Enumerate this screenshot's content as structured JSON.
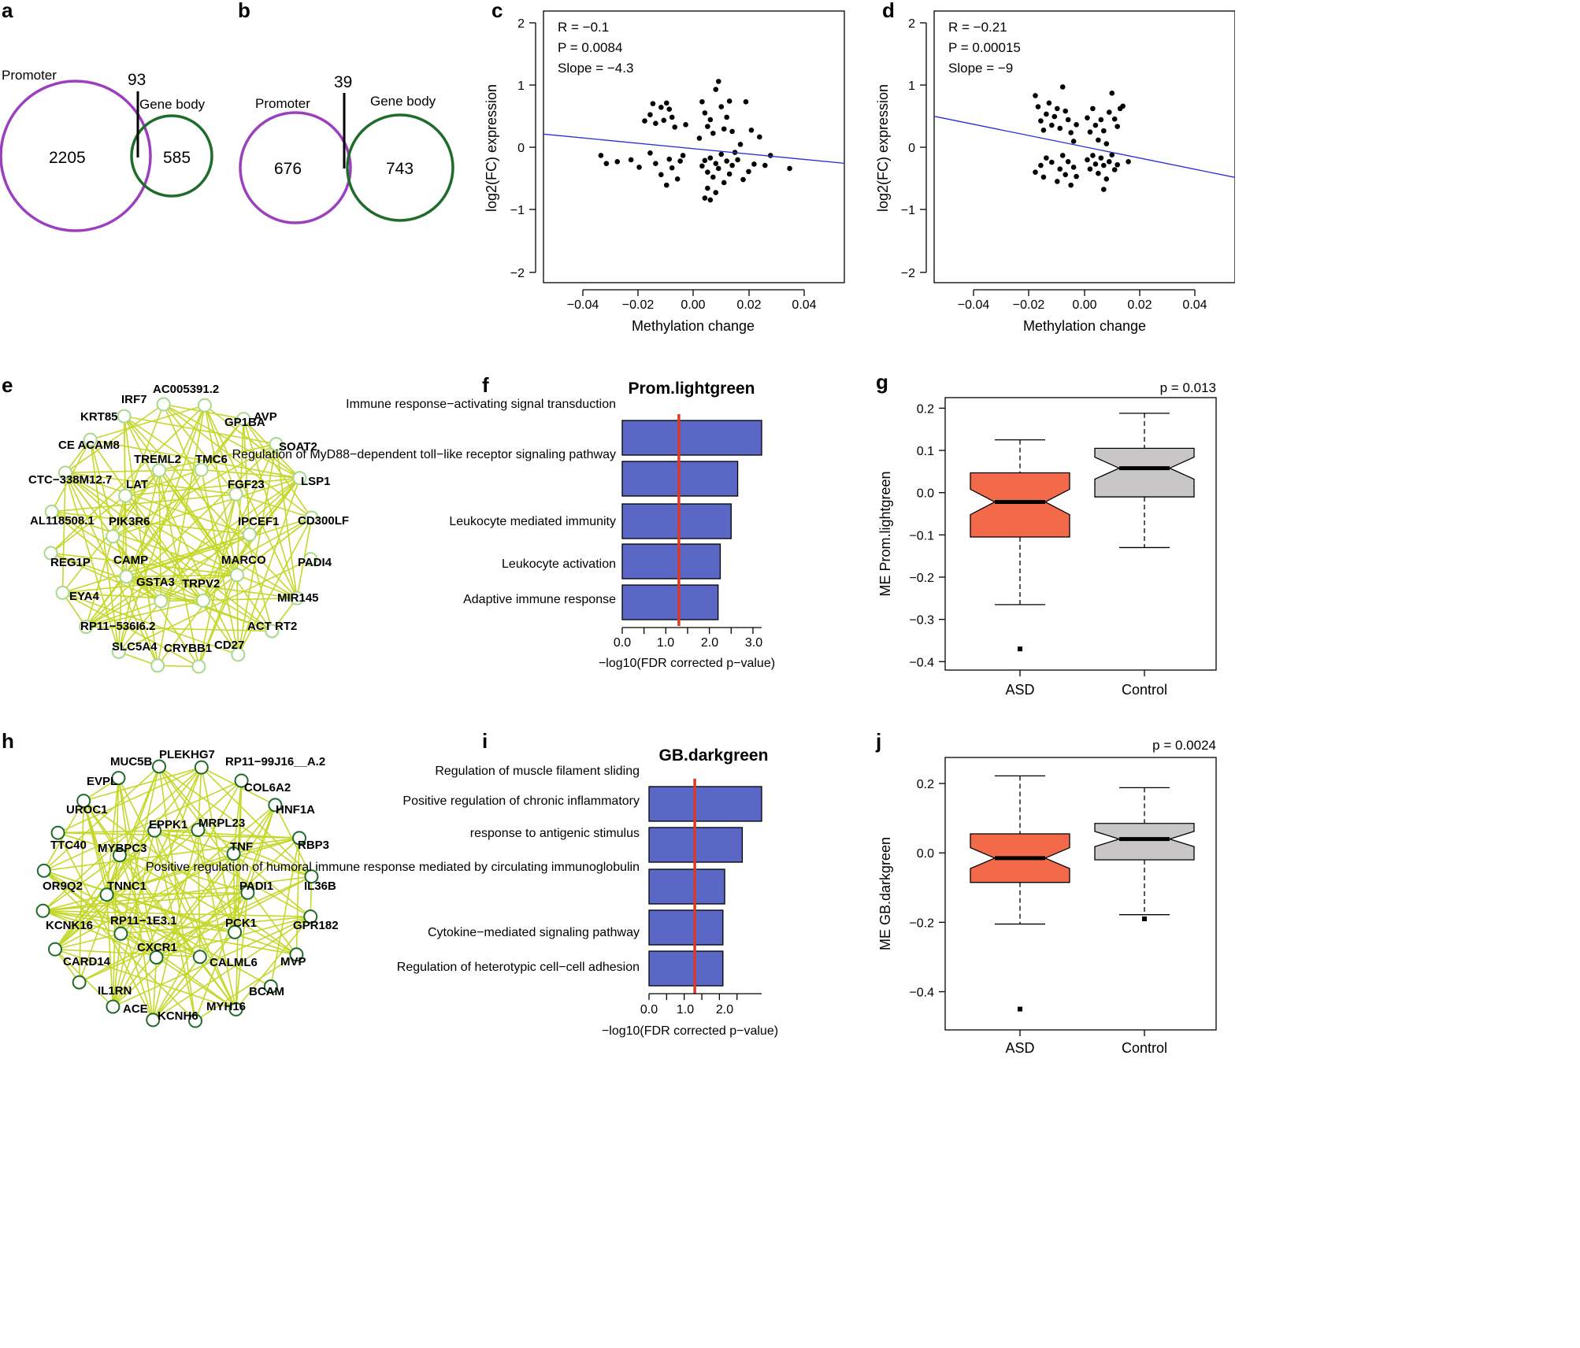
{
  "panels": {
    "a": {
      "label": "a",
      "left_name": "Promoter",
      "right_name": "Gene body",
      "left_only": "2205",
      "overlap": "93",
      "right_only": "585",
      "left_color": "#9b3fbf",
      "right_color": "#1f6b2c"
    },
    "b": {
      "label": "b",
      "left_name": "Promoter",
      "right_name": "Gene body",
      "left_only": "676",
      "overlap": "39",
      "right_only": "743",
      "left_color": "#9b3fbf",
      "right_color": "#1f6b2c"
    },
    "c": {
      "label": "c",
      "stats": [
        "R = −0.1",
        "P = 0.0084",
        "Slope = −4.3"
      ],
      "xlabel": "Methylation change",
      "ylabel": "log2(FC) expression",
      "xticks": [
        "−0.04",
        "−0.02",
        "0.00",
        "0.02",
        "0.04"
      ],
      "yticks": [
        "−2",
        "−1",
        "0",
        "1",
        "2"
      ]
    },
    "d": {
      "label": "d",
      "stats": [
        "R = −0.21",
        "P = 0.00015",
        "Slope = −9"
      ],
      "xlabel": "Methylation change",
      "ylabel": "log2(FC) expression",
      "xticks": [
        "−0.04",
        "−0.02",
        "0.00",
        "0.02",
        "0.04"
      ],
      "yticks": [
        "−2",
        "−1",
        "0",
        "1",
        "2"
      ]
    },
    "e": {
      "label": "e",
      "edge_color": "#c5d72a",
      "node_stroke": "#a8d88a",
      "genes": [
        "AC005391.2",
        "GP1BA",
        "AVP",
        "SOAT2",
        "LSP1",
        "CD300LF",
        "PADI4",
        "MIR145",
        "ACT RT2",
        "CD27",
        "CRYBB1",
        "SLC5A4",
        "RP11−536I6.2",
        "EYA4",
        "REG1P",
        "AL118508.1",
        "CTC−338M12.7",
        "CE ACAM8",
        "KRT85",
        "IRF7",
        "TREML2",
        "TMC6",
        "LAT",
        "FGF23",
        "PIK3R6",
        "IPCEF1",
        "CAMP",
        "MARCO",
        "GSTA3",
        "TRPV2"
      ]
    },
    "f": {
      "label": "f",
      "title": "Prom.lightgreen",
      "terms": [
        "Immune response−activating signal transduction",
        "Regulation of MyD88−dependent toll−like receptor signaling pathway",
        "Leukocyte mediated immunity",
        "Leukocyte activation",
        "Adaptive immune response"
      ],
      "xticks": [
        "0.0",
        "1.0",
        "2.0",
        "3.0"
      ],
      "xlabel": "−log10(FDR corrected p−value)"
    },
    "g": {
      "label": "g",
      "pvalue": "p = 0.013",
      "ylabel": "ME Prom.lightgreen",
      "groups": [
        "ASD",
        "Control"
      ],
      "yticks": [
        "0.2",
        "0.1",
        "0.0",
        "−0.1",
        "−0.2",
        "−0.3",
        "−0.4"
      ]
    },
    "h": {
      "label": "h",
      "edge_color": "#c5d72a",
      "node_stroke": "#1f6b2c",
      "genes": [
        "PLEKHG7",
        "RP11−99J16__A.2",
        "COL6A2",
        "HNF1A",
        "RBP3",
        "IL36B",
        "GPR182",
        "MVP",
        "BCAM",
        "MYH16",
        "KCNH6",
        "ACE",
        "IL1RN",
        "CARD14",
        "KCNK16",
        "OR9Q2",
        "TTC40",
        "UROC1",
        "EVPL",
        "MUC5B",
        "EPPK1",
        "MRPL23",
        "MYBPC3",
        "TNF",
        "TNNC1",
        "PADI1",
        "RP11−1E3.1",
        "PCK1",
        "CXCR1",
        "CALML6"
      ]
    },
    "i": {
      "label": "i",
      "title": "GB.darkgreen",
      "terms": [
        "Regulation of muscle filament sliding",
        "Positive regulation of chronic inflammatory",
        "response to antigenic stimulus",
        "Positive regulation of humoral immune response mediated by circulating immunoglobulin",
        "Cytokine−mediated signaling pathway",
        "Regulation of heterotypic cell−cell adhesion"
      ],
      "xticks": [
        "0.0",
        "1.0",
        "2.0"
      ],
      "xlabel": "−log10(FDR corrected p−value)"
    },
    "j": {
      "label": "j",
      "pvalue": "p = 0.0024",
      "ylabel": "ME GB.darkgreen",
      "groups": [
        "ASD",
        "Control"
      ],
      "yticks": [
        "0.2",
        "0.0",
        "−0.2",
        "−0.4"
      ]
    }
  },
  "chart_data": [
    {
      "panel": "c",
      "type": "scatter",
      "title": "",
      "xlabel": "Methylation change",
      "ylabel": "log2(FC) expression",
      "xlim": [
        -0.055,
        0.055
      ],
      "ylim": [
        -2.2,
        2.2
      ],
      "regression": {
        "intercept": -0.03,
        "slope": -4.3,
        "color": "#2a2ad8"
      },
      "points": [
        [
          -0.034,
          -0.14
        ],
        [
          -0.032,
          -0.27
        ],
        [
          -0.028,
          -0.24
        ],
        [
          -0.023,
          -0.21
        ],
        [
          -0.02,
          -0.33
        ],
        [
          -0.018,
          0.42
        ],
        [
          -0.016,
          0.52
        ],
        [
          -0.015,
          0.7
        ],
        [
          -0.014,
          0.38
        ],
        [
          -0.012,
          0.64
        ],
        [
          -0.011,
          0.43
        ],
        [
          -0.01,
          0.71
        ],
        [
          -0.009,
          0.61
        ],
        [
          -0.008,
          0.48
        ],
        [
          -0.007,
          0.32
        ],
        [
          -0.016,
          -0.1
        ],
        [
          -0.014,
          -0.27
        ],
        [
          -0.012,
          -0.45
        ],
        [
          -0.01,
          -0.62
        ],
        [
          -0.009,
          -0.2
        ],
        [
          -0.008,
          -0.34
        ],
        [
          -0.006,
          -0.52
        ],
        [
          -0.005,
          -0.23
        ],
        [
          -0.004,
          -0.14
        ],
        [
          -0.003,
          0.36
        ],
        [
          0.003,
          0.73
        ],
        [
          0.004,
          0.55
        ],
        [
          0.005,
          0.33
        ],
        [
          0.006,
          0.44
        ],
        [
          0.007,
          0.22
        ],
        [
          0.008,
          0.93
        ],
        [
          0.009,
          1.06
        ],
        [
          0.01,
          0.65
        ],
        [
          0.011,
          0.29
        ],
        [
          0.012,
          0.48
        ],
        [
          0.013,
          0.74
        ],
        [
          0.014,
          0.25
        ],
        [
          0.003,
          -0.31
        ],
        [
          0.004,
          -0.22
        ],
        [
          0.005,
          -0.41
        ],
        [
          0.006,
          -0.18
        ],
        [
          0.007,
          -0.49
        ],
        [
          0.008,
          -0.27
        ],
        [
          0.009,
          -0.35
        ],
        [
          0.01,
          -0.12
        ],
        [
          0.011,
          -0.58
        ],
        [
          0.012,
          -0.23
        ],
        [
          0.013,
          -0.44
        ],
        [
          0.014,
          -0.3
        ],
        [
          0.004,
          -0.83
        ],
        [
          0.006,
          -0.86
        ],
        [
          0.005,
          -0.67
        ],
        [
          0.008,
          -0.74
        ],
        [
          0.016,
          -0.21
        ],
        [
          0.018,
          -0.53
        ],
        [
          0.02,
          -0.4
        ],
        [
          0.022,
          -0.28
        ],
        [
          0.019,
          0.73
        ],
        [
          0.021,
          0.27
        ],
        [
          0.024,
          0.16
        ],
        [
          0.026,
          -0.3
        ],
        [
          0.028,
          -0.14
        ],
        [
          0.035,
          -0.35
        ],
        [
          0.002,
          0.14
        ],
        [
          0.015,
          -0.09
        ],
        [
          0.017,
          0.04
        ]
      ]
    },
    {
      "panel": "d",
      "type": "scatter",
      "title": "",
      "xlabel": "Methylation change",
      "ylabel": "log2(FC) expression",
      "xlim": [
        -0.055,
        0.055
      ],
      "ylim": [
        -2.2,
        2.2
      ],
      "regression": {
        "intercept": 0.0,
        "slope": -9.0,
        "color": "#2a2ad8"
      },
      "points": [
        [
          -0.018,
          0.83
        ],
        [
          -0.017,
          0.65
        ],
        [
          -0.016,
          0.42
        ],
        [
          -0.015,
          0.27
        ],
        [
          -0.014,
          0.53
        ],
        [
          -0.013,
          0.71
        ],
        [
          -0.012,
          0.35
        ],
        [
          -0.011,
          0.49
        ],
        [
          -0.01,
          0.62
        ],
        [
          -0.009,
          0.3
        ],
        [
          -0.008,
          0.97
        ],
        [
          -0.007,
          0.58
        ],
        [
          -0.006,
          0.44
        ],
        [
          -0.005,
          0.23
        ],
        [
          -0.004,
          0.09
        ],
        [
          -0.003,
          0.36
        ],
        [
          -0.018,
          -0.41
        ],
        [
          -0.016,
          -0.3
        ],
        [
          -0.015,
          -0.49
        ],
        [
          -0.014,
          -0.18
        ],
        [
          -0.012,
          -0.25
        ],
        [
          -0.01,
          -0.56
        ],
        [
          -0.009,
          -0.36
        ],
        [
          -0.008,
          -0.14
        ],
        [
          -0.007,
          -0.45
        ],
        [
          -0.006,
          -0.24
        ],
        [
          -0.005,
          -0.62
        ],
        [
          -0.004,
          -0.33
        ],
        [
          -0.003,
          -0.48
        ],
        [
          0.001,
          0.47
        ],
        [
          0.002,
          0.24
        ],
        [
          0.003,
          0.62
        ],
        [
          0.004,
          0.35
        ],
        [
          0.005,
          0.11
        ],
        [
          0.006,
          0.44
        ],
        [
          0.007,
          0.26
        ],
        [
          0.008,
          0.05
        ],
        [
          0.009,
          0.56
        ],
        [
          0.01,
          0.87
        ],
        [
          0.011,
          0.45
        ],
        [
          0.012,
          0.33
        ],
        [
          0.013,
          0.62
        ],
        [
          0.014,
          0.66
        ],
        [
          0.001,
          -0.21
        ],
        [
          0.002,
          -0.36
        ],
        [
          0.003,
          -0.14
        ],
        [
          0.004,
          -0.28
        ],
        [
          0.005,
          -0.43
        ],
        [
          0.006,
          -0.18
        ],
        [
          0.007,
          -0.3
        ],
        [
          0.008,
          -0.52
        ],
        [
          0.009,
          -0.24
        ],
        [
          0.01,
          -0.13
        ],
        [
          0.011,
          -0.37
        ],
        [
          0.012,
          -0.29
        ],
        [
          0.016,
          -0.24
        ],
        [
          0.007,
          -0.69
        ]
      ]
    },
    {
      "panel": "f",
      "type": "bar",
      "title": "Prom.lightgreen",
      "xlabel": "−log10(FDR corrected p−value)",
      "ylabel": "",
      "categories": [
        "Immune response−activating signal transduction",
        "Regulation of MyD88−dependent toll−like receptor signaling pathway",
        "Leukocyte mediated immunity",
        "Leukocyte activation",
        "Adaptive immune response"
      ],
      "values": [
        3.2,
        2.65,
        2.5,
        2.25,
        2.2
      ],
      "xlim": [
        0,
        3.2
      ],
      "threshold": 1.3,
      "bar_color": "#5a67c4",
      "threshold_color": "#d83a2a"
    },
    {
      "panel": "g",
      "type": "box",
      "title": "",
      "xlabel": "",
      "ylabel": "ME Prom.lightgreen",
      "categories": [
        "ASD",
        "Control"
      ],
      "ylim": [
        -0.42,
        0.225
      ],
      "boxes": [
        {
          "name": "ASD",
          "lower_whisker": -0.265,
          "q1": -0.105,
          "median": -0.022,
          "q3": 0.047,
          "upper_whisker": 0.125,
          "notch_low": -0.052,
          "notch_high": 0.008,
          "outliers": [
            -0.37
          ],
          "color": "#f26a4a"
        },
        {
          "name": "Control",
          "lower_whisker": -0.13,
          "q1": -0.01,
          "median": 0.058,
          "q3": 0.105,
          "upper_whisker": 0.188,
          "notch_low": 0.032,
          "notch_high": 0.084,
          "outliers": [],
          "color": "#c8c6c6"
        }
      ]
    },
    {
      "panel": "i",
      "type": "bar",
      "title": "GB.darkgreen",
      "xlabel": "−log10(FDR corrected p−value)",
      "ylabel": "",
      "categories": [
        "Regulation of muscle filament sliding",
        "Positive regulation of chronic inflammatory response to antigenic stimulus",
        "Positive regulation of humoral immune response mediated by circulating immunoglobulin",
        "Cytokine−mediated signaling pathway",
        "Regulation of heterotypic cell−cell adhesion"
      ],
      "values": [
        3.2,
        2.65,
        2.15,
        2.1,
        2.1
      ],
      "xlim": [
        0,
        3.2
      ],
      "threshold": 1.3,
      "bar_color": "#5a67c4",
      "threshold_color": "#d83a2a"
    },
    {
      "panel": "j",
      "type": "box",
      "title": "",
      "xlabel": "",
      "ylabel": "ME GB.darkgreen",
      "categories": [
        "ASD",
        "Control"
      ],
      "ylim": [
        -0.51,
        0.275
      ],
      "boxes": [
        {
          "name": "ASD",
          "lower_whisker": -0.205,
          "q1": -0.085,
          "median": -0.015,
          "q3": 0.055,
          "upper_whisker": 0.222,
          "notch_low": -0.045,
          "notch_high": 0.015,
          "outliers": [
            -0.45
          ],
          "color": "#f26a4a"
        },
        {
          "name": "Control",
          "lower_whisker": -0.178,
          "q1": -0.02,
          "median": 0.04,
          "q3": 0.085,
          "upper_whisker": 0.188,
          "notch_low": 0.018,
          "notch_high": 0.062,
          "outliers": [
            -0.19
          ],
          "color": "#c8c6c6"
        }
      ]
    }
  ]
}
